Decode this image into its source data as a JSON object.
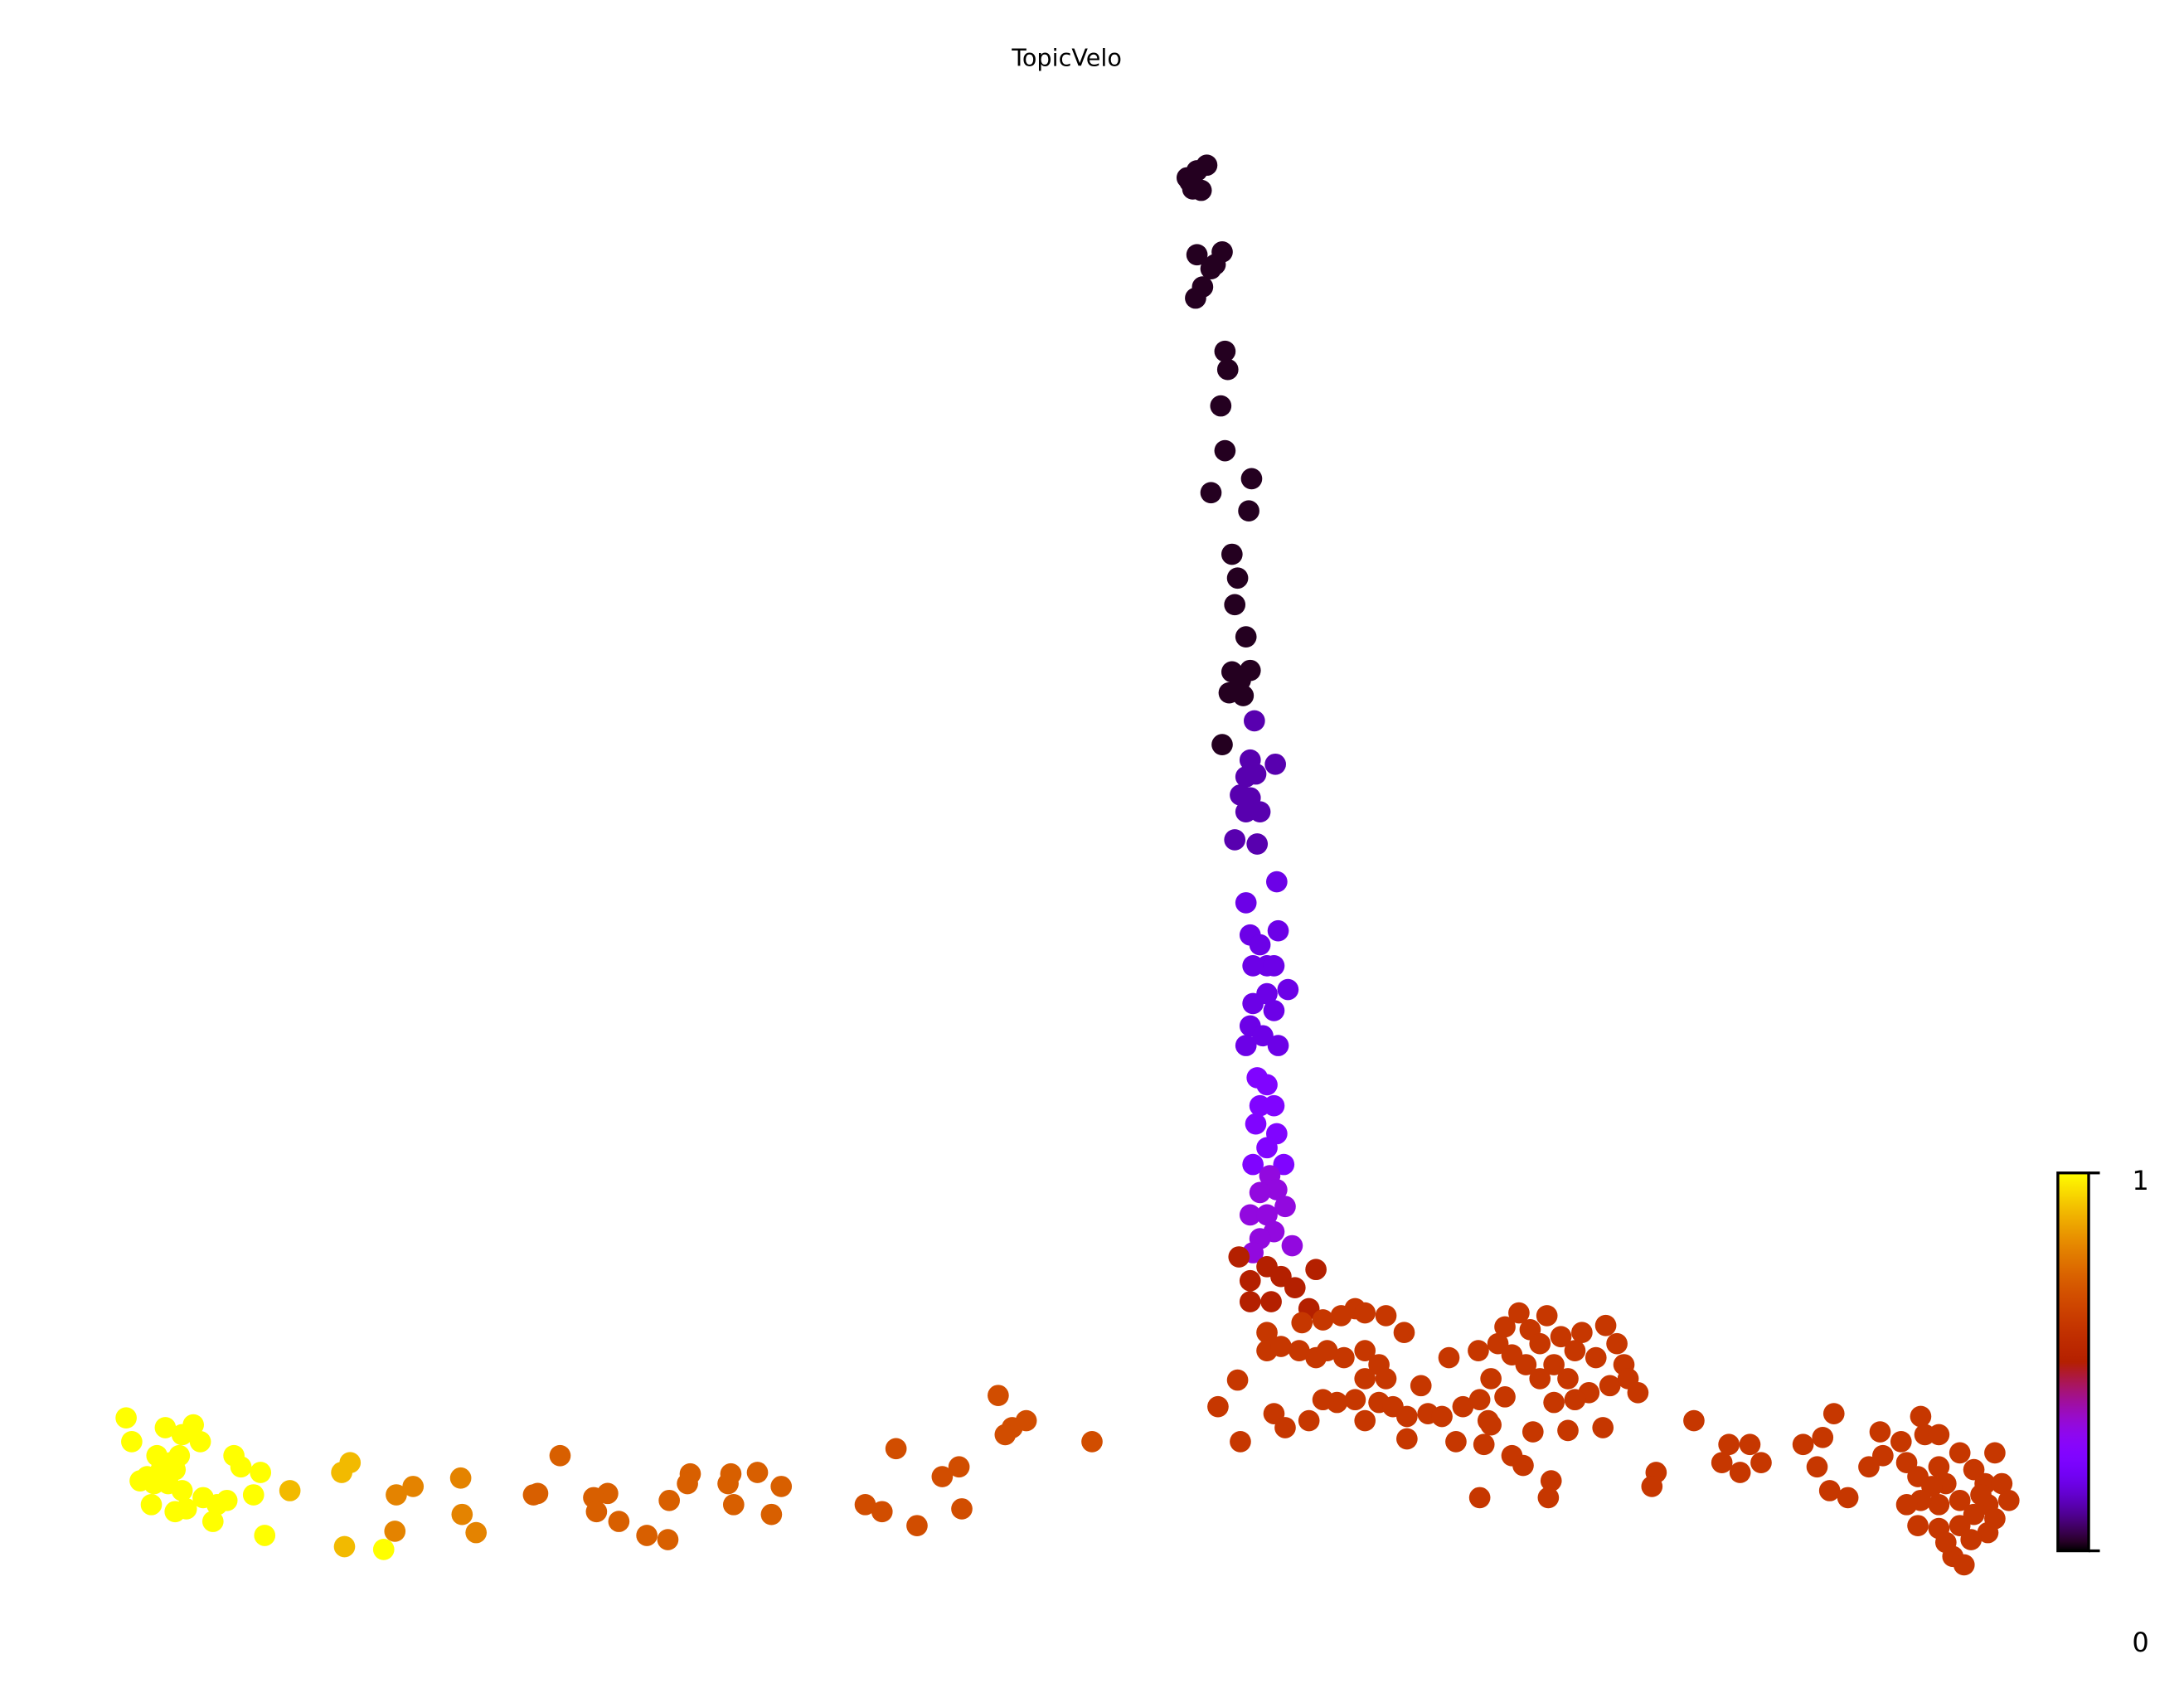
{
  "chart_data": {
    "type": "scatter",
    "title": "TopicVelo",
    "xlabel": "",
    "ylabel": "",
    "xlim": [
      0,
      156
    ],
    "ylim": [
      0,
      120
    ],
    "grid": false,
    "axes_visible": false,
    "colormap": "gnuplot",
    "colorbar": {
      "range": [
        0,
        1
      ],
      "tick_labels": [
        "0",
        "1"
      ],
      "placement": "bottom-right"
    },
    "groups": [
      {
        "value": 0.02,
        "points": [
          [
            84.8,
            107.3
          ],
          [
            85.5,
            107.8
          ],
          [
            86.2,
            108.2
          ],
          [
            85.2,
            106.5
          ],
          [
            85.8,
            106.4
          ],
          [
            85,
            107
          ],
          [
            86.5,
            100.8
          ],
          [
            85.5,
            101.8
          ],
          [
            87.3,
            102
          ],
          [
            86.8,
            101.1
          ],
          [
            85.9,
            99.5
          ],
          [
            85.4,
            98.7
          ],
          [
            87.5,
            94.9
          ],
          [
            87.7,
            93.6
          ],
          [
            87.2,
            91
          ],
          [
            87.5,
            87.8
          ],
          [
            86.5,
            84.8
          ],
          [
            89.4,
            85.8
          ],
          [
            89.2,
            83.5
          ],
          [
            88,
            80.4
          ],
          [
            88.4,
            78.7
          ],
          [
            88.2,
            76.8
          ],
          [
            89,
            74.5
          ],
          [
            88,
            72
          ],
          [
            89.3,
            72.1
          ],
          [
            88.6,
            71.4
          ],
          [
            87.8,
            70.5
          ],
          [
            88.8,
            70.3
          ],
          [
            87.3,
            66.8
          ]
        ]
      },
      {
        "value": 0.12,
        "points": [
          [
            89.6,
            68.5
          ],
          [
            89.3,
            65.7
          ],
          [
            91.1,
            65.4
          ],
          [
            89,
            64.5
          ],
          [
            89.7,
            64.7
          ],
          [
            88.6,
            63.2
          ],
          [
            89.3,
            63
          ],
          [
            90,
            62
          ],
          [
            89,
            62
          ],
          [
            88.2,
            60
          ],
          [
            89.8,
            59.7
          ]
        ]
      },
      {
        "value": 0.18,
        "points": [
          [
            91.2,
            57
          ],
          [
            89,
            55.5
          ],
          [
            89.3,
            53.2
          ],
          [
            91.3,
            53.5
          ],
          [
            90,
            52.5
          ],
          [
            90.5,
            51
          ],
          [
            89.5,
            51
          ],
          [
            91,
            51
          ],
          [
            92,
            49.3
          ],
          [
            90.5,
            49
          ],
          [
            89.5,
            48.3
          ],
          [
            91,
            47.8
          ],
          [
            89.3,
            46.7
          ],
          [
            90.2,
            46
          ],
          [
            89,
            45.3
          ],
          [
            91.3,
            45.3
          ]
        ]
      },
      {
        "value": 0.25,
        "points": [
          [
            89.8,
            43
          ],
          [
            90.5,
            42.5
          ],
          [
            90,
            41
          ],
          [
            91,
            41
          ],
          [
            89.7,
            39.7
          ],
          [
            91.2,
            39
          ],
          [
            90.5,
            38
          ],
          [
            91.7,
            36.8
          ],
          [
            89.5,
            36.8
          ]
        ]
      },
      {
        "value": 0.33,
        "points": [
          [
            90.7,
            36
          ],
          [
            91.2,
            35
          ],
          [
            90,
            34.8
          ],
          [
            91.8,
            33.8
          ],
          [
            89.3,
            33.2
          ],
          [
            90.5,
            33.2
          ],
          [
            91,
            32
          ],
          [
            90,
            31.5
          ],
          [
            92.3,
            31
          ],
          [
            89.5,
            30.5
          ]
        ]
      },
      {
        "value": 0.5,
        "points": [
          [
            88.5,
            30.2
          ],
          [
            89.3,
            28.5
          ],
          [
            89.3,
            27
          ],
          [
            90.5,
            29.5
          ],
          [
            91.5,
            28.8
          ],
          [
            94,
            29.3
          ],
          [
            92.5,
            28
          ],
          [
            90.8,
            27
          ],
          [
            93.5,
            26.5
          ]
        ]
      },
      {
        "value": 0.6,
        "points": [
          [
            93,
            25.5
          ],
          [
            90.5,
            24.8
          ],
          [
            94.5,
            25.7
          ],
          [
            90.5,
            23.5
          ],
          [
            91.5,
            23.8
          ],
          [
            92.8,
            23.5
          ],
          [
            94,
            23
          ],
          [
            94.8,
            23.5
          ],
          [
            95.8,
            26
          ],
          [
            96.8,
            26.5
          ],
          [
            97.5,
            26.2
          ],
          [
            99,
            26
          ],
          [
            100.3,
            24.8
          ],
          [
            96,
            23
          ],
          [
            97.5,
            23.5
          ],
          [
            98.5,
            22.5
          ],
          [
            99,
            21.5
          ],
          [
            97.5,
            21.5
          ],
          [
            96.8,
            20
          ],
          [
            95.5,
            19.8
          ],
          [
            94.5,
            20
          ],
          [
            93.5,
            18.5
          ],
          [
            91,
            19
          ],
          [
            91.8,
            18
          ],
          [
            87,
            19.5
          ],
          [
            88.6,
            17
          ],
          [
            88.4,
            21.4
          ],
          [
            97.5,
            18.5
          ],
          [
            98.5,
            19.8
          ],
          [
            99.5,
            19.5
          ],
          [
            100.5,
            18.8
          ],
          [
            101.5,
            21
          ],
          [
            102,
            19
          ],
          [
            100.5,
            17.2
          ],
          [
            103.5,
            23
          ],
          [
            103,
            18.8
          ],
          [
            104.5,
            19.5
          ],
          [
            104,
            17
          ],
          [
            105.7,
            20
          ],
          [
            106,
            16.8
          ],
          [
            106.3,
            18.5
          ],
          [
            105.6,
            23.5
          ],
          [
            107,
            24
          ],
          [
            107.5,
            25.2
          ],
          [
            108.5,
            26.2
          ],
          [
            109.3,
            25
          ],
          [
            110.5,
            26
          ],
          [
            106.5,
            21.5
          ],
          [
            108,
            23.2
          ],
          [
            109,
            22.5
          ],
          [
            110,
            24
          ],
          [
            111,
            22.5
          ],
          [
            111.5,
            24.5
          ],
          [
            112.5,
            23.5
          ],
          [
            112,
            21.5
          ],
          [
            113,
            24.8
          ],
          [
            114,
            23
          ],
          [
            114.7,
            25.3
          ],
          [
            115.5,
            24
          ],
          [
            116,
            22.5
          ],
          [
            115,
            21
          ],
          [
            113.5,
            20.5
          ],
          [
            112.5,
            20
          ],
          [
            111,
            19.8
          ],
          [
            116.3,
            21.5
          ],
          [
            117,
            20.5
          ],
          [
            110,
            21.5
          ],
          [
            107.5,
            20.2
          ],
          [
            106.5,
            18.2
          ],
          [
            109.5,
            17.7
          ],
          [
            112,
            17.8
          ],
          [
            114.5,
            18
          ],
          [
            108,
            16
          ],
          [
            108.8,
            15.3
          ],
          [
            110.8,
            14.2
          ],
          [
            110.6,
            13
          ],
          [
            105.7,
            13
          ],
          [
            121,
            18.5
          ],
          [
            118.3,
            14.8
          ],
          [
            118,
            13.8
          ],
          [
            123.5,
            16.8
          ],
          [
            125,
            16.8
          ],
          [
            123,
            15.5
          ],
          [
            124.3,
            14.8
          ],
          [
            125.8,
            15.5
          ],
          [
            128.8,
            16.8
          ],
          [
            130.2,
            17.3
          ],
          [
            131,
            19
          ],
          [
            129.8,
            15.2
          ],
          [
            130.7,
            13.5
          ],
          [
            132,
            13
          ],
          [
            133.5,
            15.2
          ],
          [
            134.5,
            16
          ],
          [
            134.3,
            17.7
          ],
          [
            135.8,
            17
          ],
          [
            137.2,
            18.8
          ],
          [
            137.5,
            17.5
          ],
          [
            138.5,
            17.5
          ],
          [
            136.2,
            15.5
          ],
          [
            137,
            14.5
          ],
          [
            138.5,
            15.2
          ],
          [
            140,
            16.2
          ],
          [
            139,
            14
          ],
          [
            141,
            15
          ],
          [
            142.5,
            16.2
          ],
          [
            141.8,
            14
          ],
          [
            143,
            14
          ],
          [
            143.5,
            12.8
          ],
          [
            142,
            12.5
          ],
          [
            140,
            12.8
          ],
          [
            138.5,
            12.5
          ],
          [
            137.2,
            12.8
          ],
          [
            136.2,
            12.5
          ],
          [
            141,
            11.8
          ],
          [
            142.5,
            11.5
          ],
          [
            140,
            11
          ],
          [
            138.5,
            10.8
          ],
          [
            137,
            11
          ],
          [
            142,
            10.5
          ],
          [
            139.5,
            8.8
          ],
          [
            140.3,
            8.2
          ],
          [
            139,
            9.8
          ],
          [
            140.8,
            10
          ],
          [
            138,
            13.8
          ],
          [
            141.5,
            13.2
          ]
        ]
      },
      {
        "value": 0.67,
        "points": [
          [
            78,
            17
          ],
          [
            73.3,
            18.5
          ],
          [
            72.3,
            18
          ],
          [
            71.8,
            17.5
          ],
          [
            71.3,
            20.3
          ],
          [
            68.5,
            15.2
          ],
          [
            67.3,
            14.5
          ],
          [
            68.7,
            12.2
          ],
          [
            65.5,
            11
          ],
          [
            64,
            16.5
          ],
          [
            63,
            12
          ],
          [
            61.8,
            12.5
          ]
        ]
      },
      {
        "value": 0.72,
        "points": [
          [
            55.8,
            13.8
          ],
          [
            55.1,
            11.8
          ],
          [
            54.1,
            14.8
          ],
          [
            52,
            14
          ],
          [
            52.2,
            14.7
          ],
          [
            52.4,
            12.5
          ],
          [
            49.3,
            14.7
          ],
          [
            49.1,
            14
          ],
          [
            47.8,
            12.8
          ],
          [
            47.7,
            10
          ],
          [
            46.2,
            10.3
          ],
          [
            44.2,
            11.3
          ],
          [
            43.4,
            13.3
          ],
          [
            42.4,
            13
          ],
          [
            42.6,
            12
          ],
          [
            40,
            16
          ],
          [
            38.1,
            13.2
          ],
          [
            38.4,
            13.3
          ]
        ]
      },
      {
        "value": 0.8,
        "points": [
          [
            34,
            10.5
          ],
          [
            33,
            11.8
          ],
          [
            32.9,
            14.4
          ],
          [
            29.5,
            13.8
          ],
          [
            28.3,
            13.2
          ],
          [
            28.2,
            10.6
          ]
        ]
      },
      {
        "value": 0.9,
        "points": [
          [
            24.6,
            9.5
          ],
          [
            24.4,
            14.8
          ],
          [
            25,
            15.5
          ],
          [
            20.7,
            13.5
          ]
        ]
      },
      {
        "value": 1.0,
        "points": [
          [
            27.4,
            9.3
          ],
          [
            18.9,
            10.3
          ],
          [
            18.6,
            14.8
          ],
          [
            18.1,
            13.2
          ],
          [
            17.2,
            15.2
          ],
          [
            16.7,
            16
          ],
          [
            16.2,
            12.8
          ],
          [
            15.5,
            12.5
          ],
          [
            15.2,
            11.3
          ],
          [
            14.3,
            17
          ],
          [
            13.8,
            18.2
          ],
          [
            13,
            17.5
          ],
          [
            12.8,
            16
          ],
          [
            11.8,
            18
          ],
          [
            11.5,
            15
          ],
          [
            11,
            14
          ],
          [
            10.5,
            14.5
          ],
          [
            10.8,
            12.5
          ],
          [
            10,
            14.2
          ],
          [
            9,
            18.7
          ],
          [
            9.4,
            17
          ],
          [
            12.5,
            12
          ],
          [
            13.3,
            12.2
          ],
          [
            14.5,
            13
          ],
          [
            12,
            14
          ],
          [
            12.5,
            15
          ],
          [
            13,
            13.5
          ],
          [
            11.2,
            16
          ],
          [
            12.2,
            15.5
          ]
        ]
      }
    ]
  }
}
